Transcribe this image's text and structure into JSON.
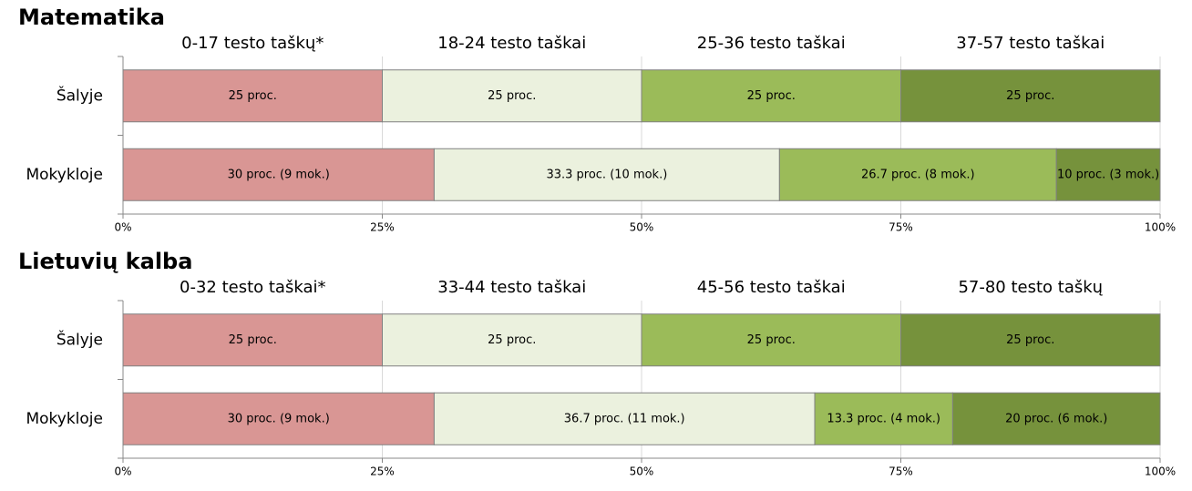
{
  "chart_data": [
    {
      "type": "bar",
      "title": "Matematika",
      "stacked": true,
      "orientation": "horizontal",
      "categories": [
        "Šalyje",
        "Mokykloje"
      ],
      "series": [
        {
          "name": "0-17 testo taškų*",
          "color": "#d99694",
          "values": [
            25,
            30
          ],
          "value_labels": [
            "25 proc.",
            "30 proc. (9 mok.)"
          ]
        },
        {
          "name": "18-24 testo taškai",
          "color": "#ebf1de",
          "values": [
            25,
            33.3
          ],
          "value_labels": [
            "25 proc.",
            "33.3 proc. (10 mok.)"
          ]
        },
        {
          "name": "25-36 testo taškai",
          "color": "#9bbb59",
          "values": [
            25,
            26.7
          ],
          "value_labels": [
            "25 proc.",
            "26.7 proc. (8 mok.)"
          ]
        },
        {
          "name": "37-57 testo taškai",
          "color": "#76923c",
          "values": [
            25,
            10
          ],
          "value_labels": [
            "25 proc.",
            "10 proc. (3 mok.)"
          ]
        }
      ],
      "xlim": [
        0,
        100
      ],
      "xticks": [
        {
          "value": 0,
          "label": "0%"
        },
        {
          "value": 25,
          "label": "25%"
        },
        {
          "value": 50,
          "label": "50%"
        },
        {
          "value": 75,
          "label": "75%"
        },
        {
          "value": 100,
          "label": "100%"
        }
      ],
      "grid": true
    },
    {
      "type": "bar",
      "title": "Lietuvių kalba",
      "stacked": true,
      "orientation": "horizontal",
      "categories": [
        "Šalyje",
        "Mokykloje"
      ],
      "series": [
        {
          "name": "0-32 testo taškai*",
          "color": "#d99694",
          "values": [
            25,
            30
          ],
          "value_labels": [
            "25 proc.",
            "30 proc. (9 mok.)"
          ]
        },
        {
          "name": "33-44 testo taškai",
          "color": "#ebf1de",
          "values": [
            25,
            36.7
          ],
          "value_labels": [
            "25 proc.",
            "36.7 proc. (11 mok.)"
          ]
        },
        {
          "name": "45-56 testo taškai",
          "color": "#9bbb59",
          "values": [
            25,
            13.3
          ],
          "value_labels": [
            "25 proc.",
            "13.3 proc. (4 mok.)"
          ]
        },
        {
          "name": "57-80 testo taškų",
          "color": "#76923c",
          "values": [
            25,
            20
          ],
          "value_labels": [
            "25 proc.",
            "20 proc. (6 mok.)"
          ]
        }
      ],
      "xlim": [
        0,
        100
      ],
      "xticks": [
        {
          "value": 0,
          "label": "0%"
        },
        {
          "value": 25,
          "label": "25%"
        },
        {
          "value": 50,
          "label": "50%"
        },
        {
          "value": 75,
          "label": "75%"
        },
        {
          "value": 100,
          "label": "100%"
        }
      ],
      "grid": true
    }
  ]
}
